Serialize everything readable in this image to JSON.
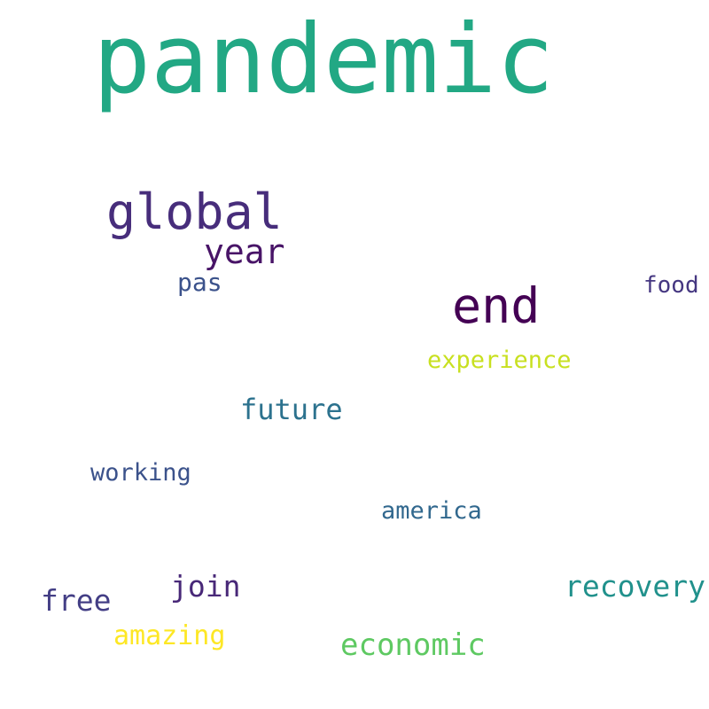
{
  "words": [
    {
      "text": "pandemic",
      "color": "#22a884"
    },
    {
      "text": "global",
      "color": "#472d7b"
    },
    {
      "text": "end",
      "color": "#440154"
    },
    {
      "text": "year",
      "color": "#481467"
    },
    {
      "text": "pas",
      "color": "#3b528b"
    },
    {
      "text": "food",
      "color": "#453781"
    },
    {
      "text": "experience",
      "color": "#c8e020"
    },
    {
      "text": "future",
      "color": "#2c728e"
    },
    {
      "text": "working",
      "color": "#3b528b"
    },
    {
      "text": "america",
      "color": "#31688e"
    },
    {
      "text": "join",
      "color": "#482878"
    },
    {
      "text": "recovery",
      "color": "#21918c"
    },
    {
      "text": "free",
      "color": "#433e85"
    },
    {
      "text": "amazing",
      "color": "#fde725"
    },
    {
      "text": "economic",
      "color": "#5ec962"
    }
  ]
}
